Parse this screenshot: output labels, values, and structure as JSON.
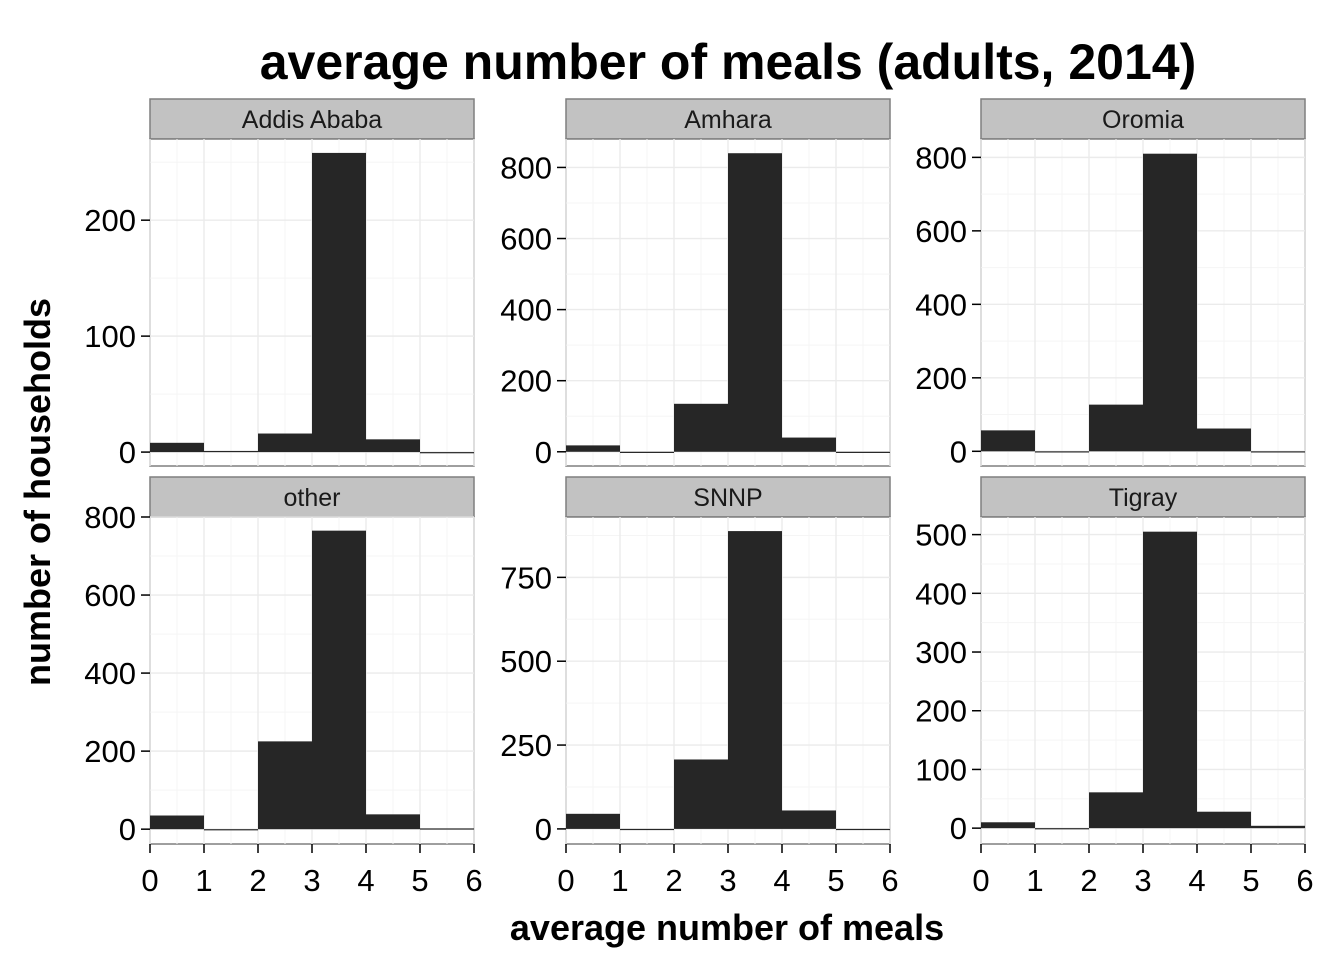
{
  "chart_data": {
    "type": "bar",
    "title": "average number of meals (adults, 2014)",
    "xlabel": "average number of meals",
    "ylabel": "number of households",
    "xlim": [
      0,
      6
    ],
    "xticks": [
      0,
      1,
      2,
      3,
      4,
      5,
      6
    ],
    "bins": [
      [
        0,
        1
      ],
      [
        1,
        2
      ],
      [
        2,
        3
      ],
      [
        3,
        4
      ],
      [
        4,
        5
      ],
      [
        5,
        6
      ]
    ],
    "grid": true,
    "bar_color": "#262626",
    "panels": [
      {
        "name": "Addis Ababa",
        "values": [
          8,
          1,
          16,
          258,
          11,
          0
        ],
        "ylim": [
          -12,
          270
        ],
        "yticks": [
          0,
          100,
          200
        ]
      },
      {
        "name": "Amhara",
        "values": [
          18,
          0,
          135,
          840,
          40,
          0
        ],
        "ylim": [
          -40,
          880
        ],
        "yticks": [
          0,
          200,
          400,
          600,
          800
        ]
      },
      {
        "name": "Oromia",
        "values": [
          57,
          0,
          127,
          810,
          62,
          0
        ],
        "ylim": [
          -40,
          850
        ],
        "yticks": [
          0,
          200,
          400,
          600,
          800
        ]
      },
      {
        "name": "other",
        "values": [
          35,
          0,
          225,
          765,
          38,
          2
        ],
        "ylim": [
          -38,
          800
        ],
        "yticks": [
          0,
          200,
          400,
          600,
          800
        ]
      },
      {
        "name": "SNNP",
        "values": [
          45,
          0,
          207,
          888,
          55,
          0
        ],
        "ylim": [
          -45,
          930
        ],
        "yticks": [
          0,
          250,
          500,
          750
        ]
      },
      {
        "name": "Tigray",
        "values": [
          10,
          0,
          61,
          505,
          28,
          4
        ],
        "ylim": [
          -27,
          530
        ],
        "yticks": [
          0,
          100,
          200,
          300,
          400,
          500
        ]
      }
    ]
  }
}
